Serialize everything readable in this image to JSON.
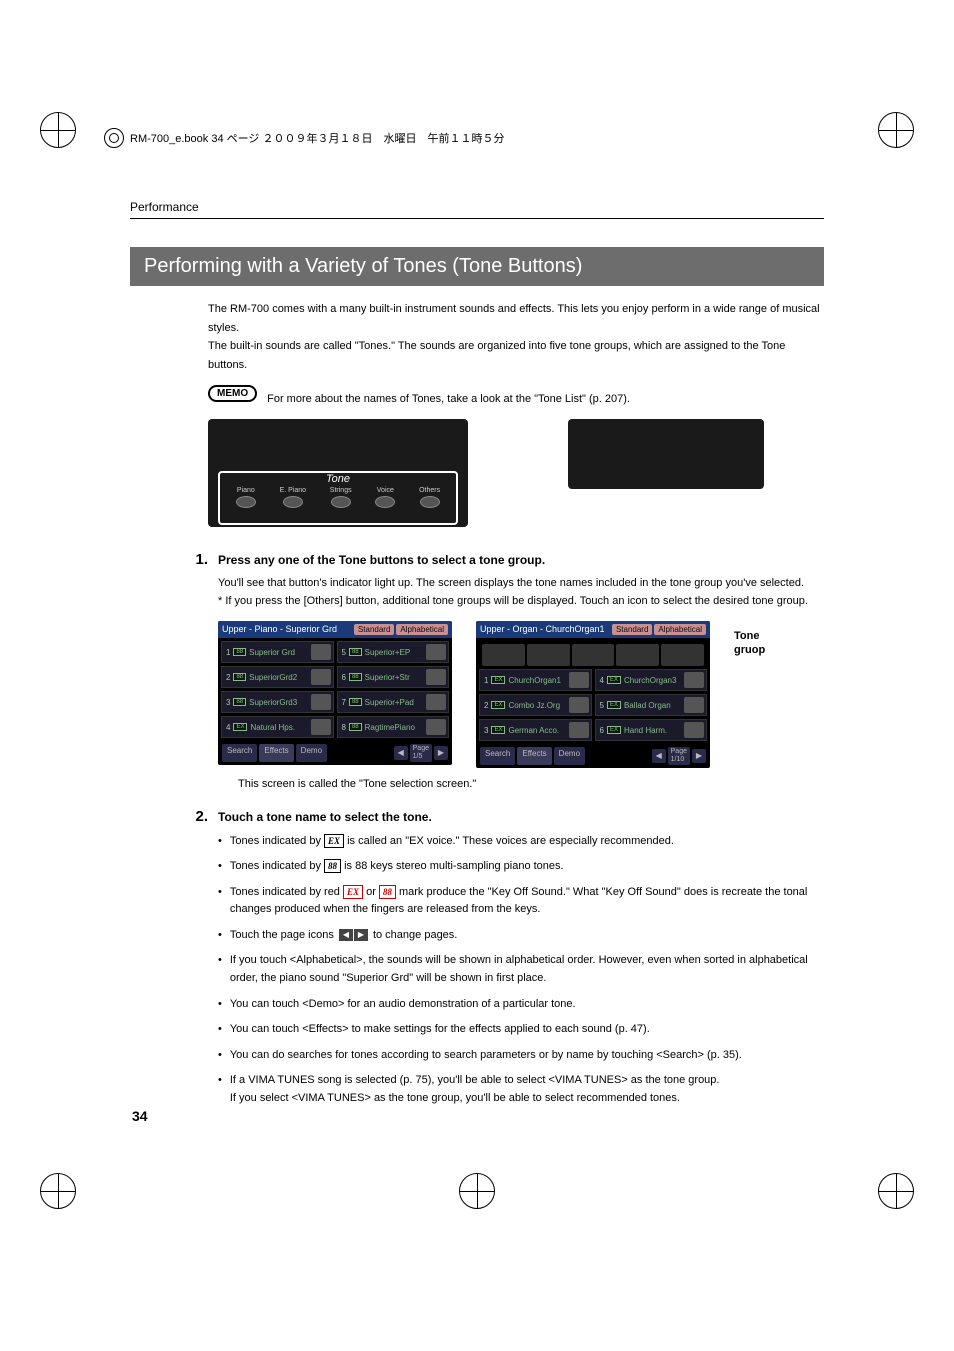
{
  "header": {
    "book_line": "RM-700_e.book 34 ページ ２００９年３月１８日　水曜日　午前１１時５分"
  },
  "breadcrumb": "Performance",
  "title": "Performing with a Variety of Tones (Tone Buttons)",
  "intro": {
    "line1": "The RM-700 comes with a many built-in instrument sounds and effects. This lets you enjoy perform in a wide range of musical styles.",
    "line2": "The built-in sounds are called \"Tones.\" The sounds are organized into five tone groups, which are assigned to the Tone buttons."
  },
  "memo": {
    "badge": "MEMO",
    "text": "For more about the names of Tones, take a look at the \"Tone List\" (p. 207)."
  },
  "panel": {
    "tone_label": "Tone",
    "buttons": [
      "Piano",
      "E. Piano",
      "Strings",
      "Voice",
      "Others"
    ]
  },
  "step1": {
    "num": "1.",
    "title": "Press any one of the Tone buttons to select a tone group.",
    "line1": "You'll see that button's indicator light up. The screen displays the tone names included in the tone group you've selected.",
    "line2": "*  If you press the [Others] button, additional tone groups will be displayed. Touch an icon to select the desired tone group."
  },
  "screen_piano": {
    "header": "Upper - Piano - Superior Grd",
    "tabs": [
      "Standard",
      "Alphabetical"
    ],
    "tones": [
      {
        "n": "1",
        "badge": "88",
        "name": "Superior Grd"
      },
      {
        "n": "5",
        "badge": "88",
        "name": "Superior+EP"
      },
      {
        "n": "2",
        "badge": "88",
        "name": "SuperiorGrd2"
      },
      {
        "n": "6",
        "badge": "88",
        "name": "Superior+Str"
      },
      {
        "n": "3",
        "badge": "88",
        "name": "SuperiorGrd3"
      },
      {
        "n": "7",
        "badge": "88",
        "name": "Superior+Pad"
      },
      {
        "n": "4",
        "badge": "EX",
        "name": "Natural Hps."
      },
      {
        "n": "8",
        "badge": "88",
        "name": "RagtimePiano"
      }
    ],
    "footer": [
      "Search",
      "Effects",
      "Demo"
    ],
    "page": "Page\n1/5"
  },
  "screen_organ": {
    "header": "Upper - Organ - ChurchOrgan1",
    "tabs": [
      "Standard",
      "Alphabetical"
    ],
    "tones": [
      {
        "n": "1",
        "badge": "EX",
        "name": "ChurchOrgan1"
      },
      {
        "n": "4",
        "badge": "EX",
        "name": "ChurchOrgan3"
      },
      {
        "n": "2",
        "badge": "EX",
        "name": "Combo Jz.Org"
      },
      {
        "n": "5",
        "badge": "EX",
        "name": "Ballad Organ"
      },
      {
        "n": "3",
        "badge": "EX",
        "name": "German Acco."
      },
      {
        "n": "6",
        "badge": "EX",
        "name": "Hand Harm."
      }
    ],
    "footer": [
      "Search",
      "Effects",
      "Demo"
    ],
    "page": "Page\n1/10"
  },
  "side_label": "Tone\ngruop",
  "caption": "This screen is called the \"Tone selection screen.\"",
  "step2": {
    "num": "2.",
    "title": "Touch a tone name to select the tone.",
    "bullets": {
      "b1_a": "Tones indicated by ",
      "b1_b": " is called an \"EX voice.\" These voices are especially recommended.",
      "b2_a": "Tones indicated by ",
      "b2_b": " is 88 keys stereo multi-sampling piano tones.",
      "b3_a": "Tones indicated by red ",
      "b3_b": " or ",
      "b3_c": " mark produce the \"Key Off Sound.\" What \"Key Off Sound\" does is recreate the tonal changes produced when the fingers are released from the keys.",
      "b4_a": "Touch the page icons ",
      "b4_b": " to change pages.",
      "b5": "If you touch <Alphabetical>, the sounds will be shown in alphabetical order. However, even when sorted in alphabetical order, the piano sound \"Superior Grd\" will be shown in first place.",
      "b6": "You can touch <Demo> for an audio demonstration of a particular tone.",
      "b7": "You can touch <Effects> to make settings for the effects applied to each sound (p. 47).",
      "b8": "You can do searches for tones according to search parameters or by name by touching <Search> (p. 35).",
      "b9_a": "If a VIMA TUNES song is selected (p. 75), you'll be able to select <VIMA TUNES> as the tone group.",
      "b9_b": "If you select <VIMA TUNES> as the tone group, you'll be able to select recommended tones."
    },
    "icons": {
      "ex": "EX",
      "eight": "88"
    }
  },
  "page_num": "34"
}
